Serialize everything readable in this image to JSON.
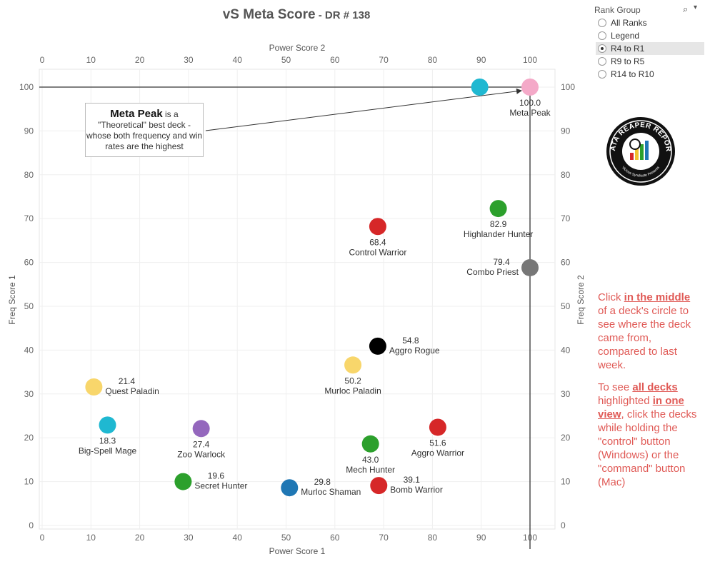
{
  "title": {
    "main": "vS Meta Score",
    "suffix": " - DR # 138"
  },
  "callout": {
    "bold": "Meta Peak",
    "rest": " is a \"Theoretical\" best deck - whose both frequency and win rates are the highest"
  },
  "rank_group": {
    "title": "Rank Group",
    "options": [
      {
        "label": "All Ranks",
        "selected": false
      },
      {
        "label": "Legend",
        "selected": false
      },
      {
        "label": "R4 to R1",
        "selected": true
      },
      {
        "label": "R9 to R5",
        "selected": false
      },
      {
        "label": "R14 to R10",
        "selected": false
      }
    ]
  },
  "logo": {
    "text": "DATA REAPER REPORT",
    "subtext": "Vicious Syndicate Presents"
  },
  "info": {
    "p1_pre": "Click ",
    "p1_em": "in the middle",
    "p1_post": " of a deck's circle to see where the deck came from, compared to last week.",
    "p2_pre": "To see ",
    "p2_em1": "all decks",
    "p2_mid": " highlighted ",
    "p2_em2": "in one view",
    "p2_post": ", click the decks while holding the \"control\" button (Windows) or the \"command\" button (Mac)"
  },
  "chart_data": {
    "type": "scatter",
    "xlabel_top": "Power Score 2",
    "xlabel_bottom": "Power Score 1",
    "ylabel_left": "Freq Score 1",
    "ylabel_right": "Freq Score 2",
    "x_ticks": [
      0,
      10,
      20,
      30,
      40,
      50,
      60,
      70,
      80,
      90,
      100
    ],
    "y_ticks": [
      0,
      10,
      20,
      30,
      40,
      50,
      60,
      70,
      80,
      90,
      100
    ],
    "xlim": [
      0,
      105
    ],
    "ylim": [
      -1,
      105
    ],
    "points": [
      {
        "name": "Meta Peak",
        "score": "100.0",
        "x": 100,
        "y": 100,
        "color": "#f4a9c8"
      },
      {
        "name": "",
        "score": "",
        "x": 89.7,
        "y": 100,
        "color": "#1fb8d1"
      },
      {
        "name": "Highlander Hunter",
        "score": "82.9",
        "x": 93.5,
        "y": 72.3,
        "color": "#2ca02c"
      },
      {
        "name": "Control Warrior",
        "score": "68.4",
        "x": 68.8,
        "y": 68.2,
        "color": "#d62728"
      },
      {
        "name": "Combo Priest",
        "score": "79.4",
        "x": 100,
        "y": 58.8,
        "color": "#777777"
      },
      {
        "name": "Aggro Rogue",
        "score": "54.8",
        "x": 68.8,
        "y": 40.9,
        "color": "#000000"
      },
      {
        "name": "Murloc Paladin",
        "score": "50.2",
        "x": 63.7,
        "y": 36.6,
        "color": "#f8d66b"
      },
      {
        "name": "Quest Paladin",
        "score": "21.4",
        "x": 10.6,
        "y": 31.6,
        "color": "#f8d66b"
      },
      {
        "name": "Big-Spell Mage",
        "score": "18.3",
        "x": 13.4,
        "y": 22.9,
        "color": "#1fb8d1"
      },
      {
        "name": "Zoo Warlock",
        "score": "27.4",
        "x": 32.6,
        "y": 22.1,
        "color": "#9467bd"
      },
      {
        "name": "Aggro Warrior",
        "score": "51.6",
        "x": 81.1,
        "y": 22.4,
        "color": "#d62728"
      },
      {
        "name": "Mech Hunter",
        "score": "43.0",
        "x": 67.3,
        "y": 18.6,
        "color": "#2ca02c"
      },
      {
        "name": "Secret Hunter",
        "score": "19.6",
        "x": 28.9,
        "y": 10.0,
        "color": "#2ca02c"
      },
      {
        "name": "Murloc Shaman",
        "score": "29.8",
        "x": 50.7,
        "y": 8.6,
        "color": "#1f77b4"
      },
      {
        "name": "Bomb Warrior",
        "score": "39.1",
        "x": 69.0,
        "y": 9.1,
        "color": "#d62728"
      }
    ]
  }
}
